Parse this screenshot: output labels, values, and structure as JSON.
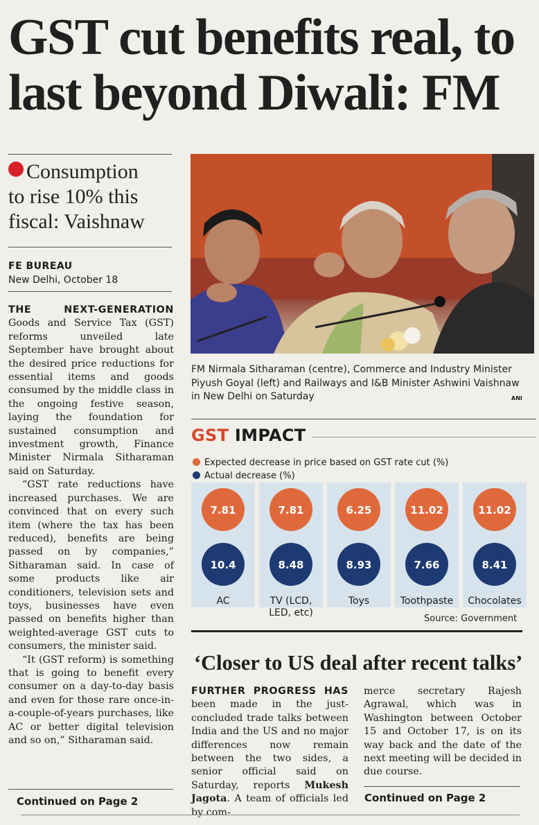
{
  "headline": {
    "line1": "GST cut benefits real, to",
    "line2": "last beyond Diwali: FM"
  },
  "subheadline": [
    "Consumption",
    "to rise 10% this",
    "fiscal: Vaishnaw"
  ],
  "byline": {
    "agency": "FE BUREAU",
    "dateline": "New Delhi, October 18"
  },
  "article": {
    "lead_caps": "THE NEXT-GENERATION",
    "p1": "Goods and Service Tax (GST) reforms unveiled late September have brought about the desired price reductions for essential items and goods consumed by the middle class in the ongoing festive season, laying the foundation for sustained consumption and investment growth, Finance Minister Nirmala Sitharaman said on Saturday.",
    "p2": "“GST rate reductions have increased purchases. We are convinced that on every such item (where the tax has been reduced), benefits are being passed on by companies,” Sitharaman said. In case of some products like air conditioners, television sets and toys, businesses have even passed on benefits higher than weighted-average GST cuts to consumers, the minister said.",
    "p3": "“It (GST reform) is something that is going to benefit every consumer on a day-to-day basis and even for those rare once-in-a-couple-of-years purchases, like AC or better digital television and so on,” Sitharaman said.",
    "continued": "Continued on Page 2"
  },
  "photo": {
    "caption": "FM Nirmala Sitharaman (centre), Commerce and Industry Minister Piyush Goyal (left) and Railways and I&B Minister Ashwini Vaishnaw in New Delhi on Saturday",
    "credit": "ANI"
  },
  "chart": {
    "title_gst": "GST",
    "title_impact": "IMPACT",
    "source": "Source: Government",
    "colors": {
      "expected": "#e0693c",
      "actual": "#1d3a73",
      "panel": "#d6e3ec"
    }
  },
  "chart_data": {
    "type": "table",
    "title": "GST IMPACT",
    "legend": [
      "Expected decrease in price based on GST rate cut (%)",
      "Actual decrease (%)"
    ],
    "categories": [
      "AC",
      "TV (LCD, LED, etc)",
      "Toys",
      "Toothpaste",
      "Chocolates"
    ],
    "category_lines": [
      [
        "AC"
      ],
      [
        "TV (LCD,",
        "LED, etc)"
      ],
      [
        "Toys"
      ],
      [
        "Toothpaste"
      ],
      [
        "Chocolates"
      ]
    ],
    "series": [
      {
        "name": "Expected decrease in price based on GST rate cut (%)",
        "values": [
          "7.81",
          "7.81",
          "6.25",
          "11.02",
          "11.02"
        ]
      },
      {
        "name": "Actual decrease (%)",
        "values": [
          "10.4",
          "8.48",
          "8.93",
          "7.66",
          "8.41"
        ]
      }
    ]
  },
  "story2": {
    "headline": "‘Closer to US deal after recent talks’",
    "lead_caps": "FURTHER PROGRESS HAS",
    "col1_before": "been made in the just-concluded trade talks between India and the US and no major differences now remain between the two sides, a senior official said on Saturday, reports",
    "reporter": "Mukesh Jagota",
    "col1_after": ". A team of officials led by com-",
    "col2": "merce secretary Rajesh Agrawal, which was in Washington between October 15 and October 17, is on its way back and the date of the next meeting will be decided in due course.",
    "continued": "Continued on Page 2"
  }
}
